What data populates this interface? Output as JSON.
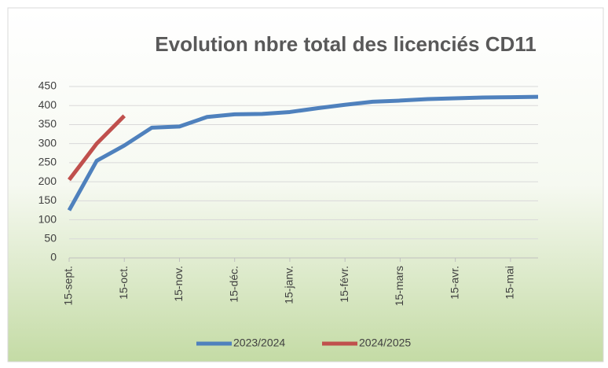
{
  "chart_data": {
    "type": "line",
    "title": "Evolution nbre total des licenciés CD11",
    "categories": [
      "15-sept.",
      null,
      "15-oct.",
      null,
      "15-nov.",
      null,
      "15-déc.",
      null,
      "15-janv.",
      null,
      "15-févr.",
      null,
      "15-mars",
      null,
      "15-avr.",
      null,
      "15-mai",
      null
    ],
    "series": [
      {
        "name": "2023/2024",
        "color": "#4f81bd",
        "values": [
          125,
          255,
          295,
          342,
          345,
          370,
          377,
          378,
          383,
          393,
          402,
          410,
          413,
          417,
          419,
          421,
          422,
          423
        ]
      },
      {
        "name": "2024/2025",
        "color": "#c0504d",
        "values": [
          205,
          300,
          373,
          null,
          null,
          null,
          null,
          null,
          null,
          null,
          null,
          null,
          null,
          null,
          null,
          null,
          null,
          null
        ]
      }
    ],
    "ylim": [
      0,
      450
    ],
    "yticks": [
      0,
      50,
      100,
      150,
      200,
      250,
      300,
      350,
      400,
      450
    ],
    "grid": true,
    "legend": "bottom"
  }
}
